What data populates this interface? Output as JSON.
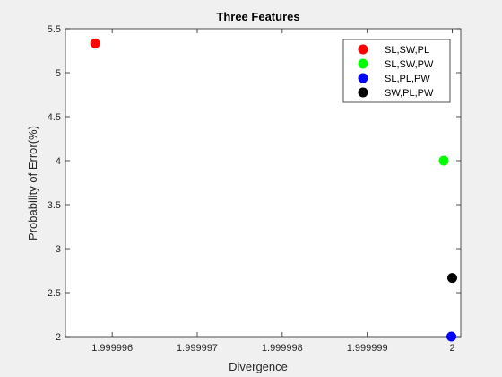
{
  "chart_data": {
    "type": "scatter",
    "title": "Three Features",
    "xlabel": "Divergence",
    "ylabel": "Probability of Error(%)",
    "xlim": [
      1.99999545,
      2.0000001
    ],
    "ylim": [
      2,
      5.5
    ],
    "xticks": [
      1.999996,
      1.999997,
      1.999998,
      1.999999,
      2
    ],
    "xtick_labels": [
      "1.999996",
      "1.999997",
      "1.999998",
      "1.999999",
      "2"
    ],
    "yticks": [
      2,
      2.5,
      3,
      3.5,
      4,
      4.5,
      5,
      5.5
    ],
    "ytick_labels": [
      "2",
      "2.5",
      "3",
      "3.5",
      "4",
      "4.5",
      "5",
      "5.5"
    ],
    "grid": false,
    "legend_position": "top-right",
    "series": [
      {
        "name": "SL,SW,PL",
        "color": "#ff0000",
        "x": 1.9999958,
        "y": 5.333
      },
      {
        "name": "SL,SW,PW",
        "color": "#00ff00",
        "x": 1.9999999,
        "y": 4.0
      },
      {
        "name": "SL,PL,PW",
        "color": "#0000ff",
        "x": 1.99999999,
        "y": 2.0
      },
      {
        "name": "SW,PL,PW",
        "color": "#000000",
        "x": 2.0,
        "y": 2.667
      }
    ]
  }
}
